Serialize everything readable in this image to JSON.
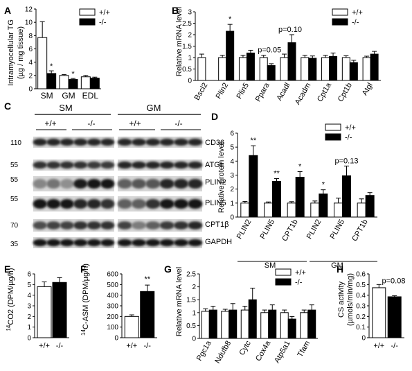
{
  "panels": {
    "A": {
      "letter": "A",
      "ylabel": "Intramyocellular TG",
      "ylabel2": "(µg / mg tissue)",
      "yticks": [
        0,
        2,
        4,
        6,
        8,
        10,
        12
      ],
      "ylim": [
        0,
        12
      ],
      "categories": [
        "SM",
        "GM",
        "EDL"
      ],
      "legend": [
        "+/+",
        "-/-"
      ],
      "series": [
        {
          "name": "+/+",
          "values": [
            7.7,
            2.0,
            1.8
          ],
          "errors": [
            2.4,
            0.15,
            0.2
          ]
        },
        {
          "name": "-/-",
          "values": [
            2.3,
            1.4,
            1.6
          ],
          "errors": [
            0.4,
            0.15,
            0.15
          ]
        }
      ],
      "annotations": [
        {
          "category": 0,
          "series": 1,
          "text": "*"
        },
        {
          "category": 1,
          "series": 1,
          "text": "*"
        }
      ]
    },
    "B": {
      "letter": "B",
      "ylabel": "Relative mRNA level",
      "yticks": [
        0,
        0.5,
        1,
        1.5,
        2,
        2.5,
        3
      ],
      "ytick_labels": [
        "0",
        "0.5",
        "1",
        "1.5",
        "2",
        "2.5",
        "3"
      ],
      "ylim": [
        0,
        3
      ],
      "categories": [
        "Bscl2",
        "Plin2",
        "Plin5",
        "Ppara",
        "Acadl",
        "Acadm",
        "Cpt1a",
        "Cpt1b",
        "Atgl"
      ],
      "legend": [
        "+/+",
        "-/-"
      ],
      "series": [
        {
          "name": "+/+",
          "values": [
            1.0,
            1.0,
            1.0,
            1.0,
            1.0,
            1.0,
            1.0,
            1.0,
            1.0
          ],
          "errors": [
            0.15,
            0.1,
            0.1,
            0.1,
            0.15,
            0.1,
            0.1,
            0.08,
            0.06
          ]
        },
        {
          "name": "-/-",
          "values": [
            null,
            2.15,
            1.2,
            0.65,
            1.65,
            0.97,
            1.05,
            0.78,
            1.15
          ],
          "errors": [
            0,
            0.3,
            0.12,
            0.08,
            0.35,
            0.1,
            0.15,
            0.1,
            0.12
          ]
        }
      ],
      "annotations": [
        {
          "category": 1,
          "text": "*"
        },
        {
          "category": 3,
          "text": "p=0.05"
        },
        {
          "category": 4,
          "text": "p=0.10"
        }
      ]
    },
    "C": {
      "letter": "C",
      "groups": [
        "SM",
        "GM"
      ],
      "genotypes": [
        "+/+",
        "-/-",
        "+/+",
        "-/-"
      ],
      "mw_markers": [
        "110",
        "55",
        "55",
        "55",
        "70",
        "35"
      ],
      "proteins": [
        "CD36",
        "ATGL",
        "PLIN2",
        "PLIN5",
        "CPT1β",
        "GAPDH"
      ]
    },
    "D": {
      "letter": "D",
      "ylabel": "Relative protein level",
      "yticks": [
        0,
        1,
        2,
        3,
        4,
        5,
        6
      ],
      "ylim": [
        0,
        6
      ],
      "categories": [
        "PLIN2",
        "PLIN5",
        "CPT1b",
        "PLIN2",
        "PLIN5",
        "CPT1b"
      ],
      "groups": [
        "SM",
        "GM"
      ],
      "legend": [
        "+/+",
        "-/-"
      ],
      "series": [
        {
          "name": "+/+",
          "values": [
            1.0,
            1.0,
            1.0,
            1.0,
            1.0,
            1.0
          ],
          "errors": [
            0.12,
            0.08,
            0.1,
            0.15,
            0.35,
            0.3
          ]
        },
        {
          "name": "-/-",
          "values": [
            4.4,
            2.55,
            2.85,
            1.65,
            2.95,
            1.55
          ],
          "errors": [
            0.7,
            0.2,
            0.4,
            0.3,
            0.7,
            0.2
          ]
        }
      ],
      "annotations": [
        {
          "category": 0,
          "text": "**"
        },
        {
          "category": 1,
          "text": "**"
        },
        {
          "category": 2,
          "text": "*"
        },
        {
          "category": 3,
          "text": "*"
        },
        {
          "category": 4,
          "text": "p=0.13"
        }
      ]
    },
    "E": {
      "letter": "E",
      "ylabel_sup": "14",
      "ylabel": "CO2 (DPM/µg/h)",
      "yticks": [
        0,
        1,
        2,
        3,
        4,
        5,
        6
      ],
      "ylim": [
        0,
        6
      ],
      "categories": [
        "+/+",
        "-/-"
      ],
      "values": [
        4.8,
        5.2
      ],
      "errors": [
        0.45,
        0.45
      ]
    },
    "F": {
      "letter": "F",
      "ylabel_sup": "14",
      "ylabel": "C-ASM (DPM/µg/h)",
      "yticks": [
        0,
        100,
        200,
        300,
        400,
        500,
        600
      ],
      "ylim": [
        0,
        600
      ],
      "categories": [
        "+/+",
        "-/-"
      ],
      "values": [
        200,
        435
      ],
      "errors": [
        15,
        60
      ],
      "annotation": "**"
    },
    "G": {
      "letter": "G",
      "ylabel": "Relative mRNA level",
      "yticks": [
        0,
        0.5,
        1,
        1.5,
        2,
        2.5
      ],
      "ytick_labels": [
        "0",
        "0.5",
        "1",
        "1.5",
        "2",
        "2.5"
      ],
      "ylim": [
        0,
        2.5
      ],
      "categories": [
        "Pgc1a",
        "Ndufb8",
        "Cytc",
        "Cox4a",
        "Atp5a1",
        "Tfam"
      ],
      "legend": [
        "+/+",
        "-/-"
      ],
      "series": [
        {
          "name": "+/+",
          "values": [
            1.05,
            1.05,
            1.1,
            1.0,
            1.0,
            1.0
          ],
          "errors": [
            0.1,
            0.08,
            0.15,
            0.1,
            0.1,
            0.1
          ]
        },
        {
          "name": "-/-",
          "values": [
            1.1,
            1.1,
            1.5,
            1.1,
            0.75,
            1.1
          ],
          "errors": [
            0.15,
            0.25,
            0.45,
            0.2,
            0.1,
            0.2
          ]
        }
      ]
    },
    "H": {
      "letter": "H",
      "ylabel": "CS activity",
      "ylabel2": "(µmols/min/mg)",
      "yticks": [
        0,
        0.1,
        0.2,
        0.3,
        0.4,
        0.5,
        0.6
      ],
      "ytick_labels": [
        "0",
        "0.1",
        "0.2",
        "0.3",
        "0.4",
        "0.5",
        "0.6"
      ],
      "ylim": [
        0,
        0.6
      ],
      "categories": [
        "+/+",
        "-/-"
      ],
      "values": [
        0.47,
        0.385
      ],
      "errors": [
        0.03,
        0.01
      ],
      "annotation": "p=0.08"
    }
  },
  "chart_data": [
    {
      "panel": "A",
      "type": "bar",
      "ylabel": "Intramyocellular TG (µg / mg tissue)",
      "categories": [
        "SM",
        "GM",
        "EDL"
      ],
      "ylim": [
        0,
        12
      ],
      "series": [
        {
          "name": "+/+",
          "values": [
            7.7,
            2.0,
            1.8
          ]
        },
        {
          "name": "-/-",
          "values": [
            2.3,
            1.4,
            1.6
          ]
        }
      ]
    },
    {
      "panel": "B",
      "type": "bar",
      "ylabel": "Relative mRNA level",
      "categories": [
        "Bscl2",
        "Plin2",
        "Plin5",
        "Ppara",
        "Acadl",
        "Acadm",
        "Cpt1a",
        "Cpt1b",
        "Atgl"
      ],
      "ylim": [
        0,
        3
      ],
      "series": [
        {
          "name": "+/+",
          "values": [
            1.0,
            1.0,
            1.0,
            1.0,
            1.0,
            1.0,
            1.0,
            1.0,
            1.0
          ]
        },
        {
          "name": "-/-",
          "values": [
            null,
            2.15,
            1.2,
            0.65,
            1.65,
            0.97,
            1.05,
            0.78,
            1.15
          ]
        }
      ]
    },
    {
      "panel": "D",
      "type": "bar",
      "ylabel": "Relative protein level",
      "categories": [
        "PLIN2",
        "PLIN5",
        "CPT1b",
        "PLIN2",
        "PLIN5",
        "CPT1b"
      ],
      "ylim": [
        0,
        6
      ],
      "series": [
        {
          "name": "+/+",
          "values": [
            1.0,
            1.0,
            1.0,
            1.0,
            1.0,
            1.0
          ]
        },
        {
          "name": "-/-",
          "values": [
            4.4,
            2.55,
            2.85,
            1.65,
            2.95,
            1.55
          ]
        }
      ]
    },
    {
      "panel": "E",
      "type": "bar",
      "ylabel": "14CO2 (DPM/µg/h)",
      "categories": [
        "+/+",
        "-/-"
      ],
      "values": [
        4.8,
        5.2
      ],
      "ylim": [
        0,
        6
      ]
    },
    {
      "panel": "F",
      "type": "bar",
      "ylabel": "14C-ASM (DPM/µg/h)",
      "categories": [
        "+/+",
        "-/-"
      ],
      "values": [
        200,
        435
      ],
      "ylim": [
        0,
        600
      ]
    },
    {
      "panel": "G",
      "type": "bar",
      "ylabel": "Relative mRNA level",
      "categories": [
        "Pgc1a",
        "Ndufb8",
        "Cytc",
        "Cox4a",
        "Atp5a1",
        "Tfam"
      ],
      "ylim": [
        0,
        2.5
      ],
      "series": [
        {
          "name": "+/+",
          "values": [
            1.05,
            1.05,
            1.1,
            1.0,
            1.0,
            1.0
          ]
        },
        {
          "name": "-/-",
          "values": [
            1.1,
            1.1,
            1.5,
            1.1,
            0.75,
            1.1
          ]
        }
      ]
    },
    {
      "panel": "H",
      "type": "bar",
      "ylabel": "CS activity (µmols/min/mg)",
      "categories": [
        "+/+",
        "-/-"
      ],
      "values": [
        0.47,
        0.385
      ],
      "ylim": [
        0,
        0.6
      ]
    }
  ]
}
